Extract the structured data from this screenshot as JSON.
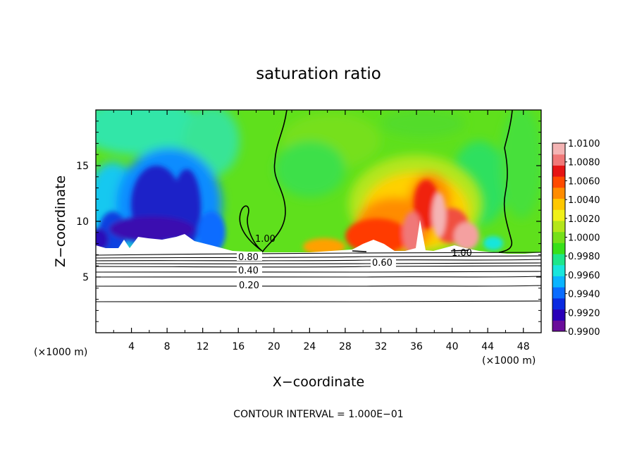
{
  "chart_data": {
    "type": "heatmap",
    "title": "saturation ratio",
    "xlabel": "X−coordinate",
    "ylabel": "Z−coordinate",
    "x_unit_left": "(×1000 m)",
    "x_unit_right": "(×1000 m)",
    "xlim": [
      0,
      50
    ],
    "ylim": [
      0,
      20
    ],
    "xticks": [
      4,
      8,
      12,
      16,
      20,
      24,
      28,
      32,
      36,
      40,
      44,
      48
    ],
    "yticks": [
      5,
      10,
      15
    ],
    "colorbar": {
      "labels": [
        "1.0100",
        "1.0080",
        "1.0060",
        "1.0040",
        "1.0020",
        "1.0000",
        "0.9980",
        "0.9960",
        "0.9940",
        "0.9920",
        "0.9900"
      ],
      "values": [
        1.01,
        1.008,
        1.006,
        1.004,
        1.002,
        1.0,
        0.998,
        0.996,
        0.994,
        0.992,
        0.99
      ],
      "colors_bottom_to_top": [
        "#6a0d9a",
        "#2a00b8",
        "#0a2ae0",
        "#0a6cff",
        "#0ab4ff",
        "#18e6dc",
        "#1ee68a",
        "#38e01a",
        "#76e01a",
        "#b4e61a",
        "#f0f01a",
        "#ffc800",
        "#ff8c00",
        "#ff4a00",
        "#e61414",
        "#f07878",
        "#f4b4b4"
      ]
    },
    "contour_labels": [
      "1.00",
      "0.80",
      "0.40",
      "0.20",
      "0.60",
      "1.00"
    ],
    "contour_interval_note": "CONTOUR INTERVAL = 1.000E−01"
  }
}
